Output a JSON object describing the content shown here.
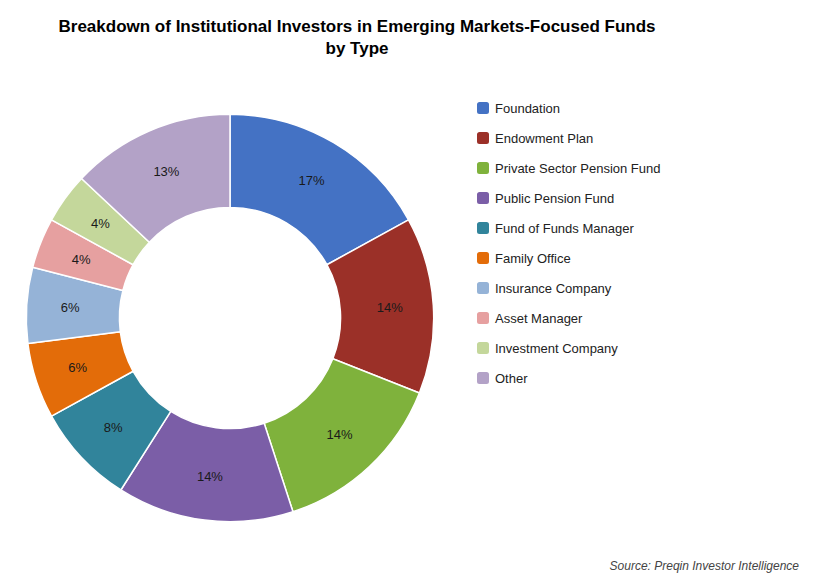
{
  "chart_data": {
    "type": "pie",
    "title": "Breakdown of Institutional Investors in Emerging Markets-Focused Funds\nby Type",
    "categories": [
      "Foundation",
      "Endowment Plan",
      "Private Sector Pension Fund",
      "Public Pension Fund",
      "Fund of Funds Manager",
      "Family Office",
      "Insurance Company",
      "Asset Manager",
      "Investment Company",
      "Other"
    ],
    "values": [
      17,
      14,
      14,
      14,
      8,
      6,
      6,
      4,
      4,
      13
    ],
    "value_labels": [
      "17%",
      "14%",
      "14%",
      "14%",
      "8%",
      "6%",
      "6%",
      "4%",
      "4%",
      "13%"
    ],
    "colors": [
      "#4472C4",
      "#9B3028",
      "#7FB23C",
      "#7B5EA7",
      "#31849B",
      "#E36C09",
      "#95B3D7",
      "#E6A0A0",
      "#C4D79B",
      "#B3A2C7"
    ],
    "data_labels": true,
    "legend": "right",
    "annotations": [
      "Source: Preqin Investor Intelligence"
    ]
  }
}
